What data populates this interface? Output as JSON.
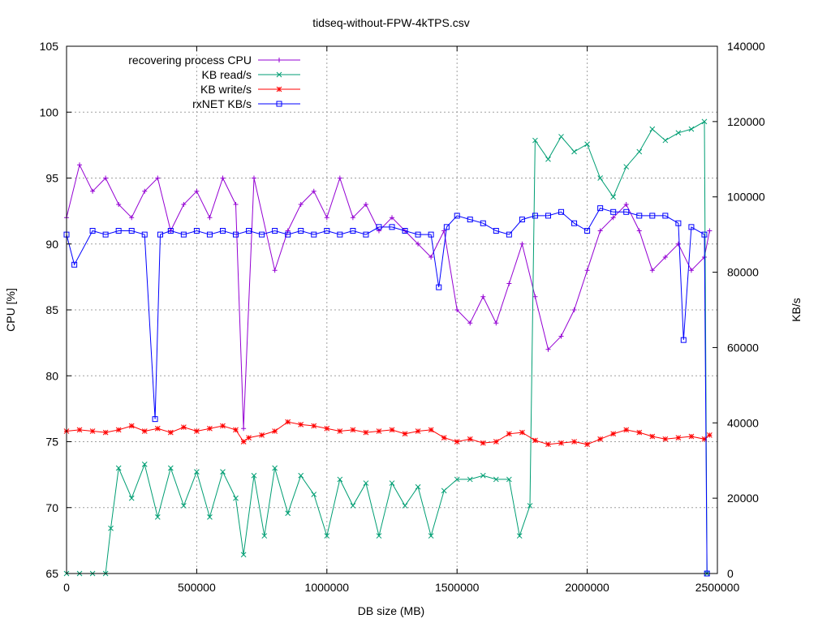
{
  "chart_data": {
    "type": "line",
    "title": "tidseq-without-FPW-4kTPS.csv",
    "xlabel": "DB size (MB)",
    "ylabel": "CPU [%]",
    "y2label": "KB/s",
    "xlim": [
      0,
      2500000
    ],
    "ylim": [
      65,
      105
    ],
    "y2lim": [
      0,
      140000
    ],
    "xticks": [
      0,
      500000,
      1000000,
      1500000,
      2000000,
      2500000
    ],
    "yticks": [
      65,
      70,
      75,
      80,
      85,
      90,
      95,
      100,
      105
    ],
    "y2ticks": [
      0,
      20000,
      40000,
      60000,
      80000,
      100000,
      120000,
      140000
    ],
    "xtick_labels": [
      "0",
      "500000",
      "1000000",
      "1500000",
      "2000000",
      "2500000"
    ],
    "ytick_labels": [
      "65",
      "70",
      "75",
      "80",
      "85",
      "90",
      "95",
      "100",
      "105"
    ],
    "y2tick_labels": [
      "0",
      "20000",
      "40000",
      "60000",
      "80000",
      "100000",
      "120000",
      "140000"
    ],
    "grid": true,
    "legend_position": "top-left",
    "series": [
      {
        "name": "recovering process CPU",
        "axis": "y1",
        "color": "#9400d3",
        "marker": "plus",
        "x": [
          0,
          50000,
          100000,
          150000,
          200000,
          250000,
          300000,
          350000,
          400000,
          450000,
          500000,
          550000,
          600000,
          650000,
          680000,
          720000,
          800000,
          850000,
          900000,
          950000,
          1000000,
          1050000,
          1100000,
          1150000,
          1200000,
          1250000,
          1300000,
          1350000,
          1400000,
          1450000,
          1500000,
          1550000,
          1600000,
          1650000,
          1700000,
          1750000,
          1800000,
          1850000,
          1900000,
          1950000,
          2000000,
          2050000,
          2100000,
          2150000,
          2200000,
          2250000,
          2300000,
          2350000,
          2400000,
          2450000,
          2470000
        ],
        "values": [
          92,
          96,
          94,
          95,
          93,
          92,
          94,
          95,
          91,
          93,
          94,
          92,
          95,
          93,
          76,
          95,
          88,
          91,
          93,
          94,
          92,
          95,
          92,
          93,
          91,
          92,
          91,
          90,
          89,
          91,
          85,
          84,
          86,
          84,
          87,
          90,
          86,
          82,
          83,
          85,
          88,
          91,
          92,
          93,
          91,
          88,
          89,
          90,
          88,
          89,
          91
        ]
      },
      {
        "name": "KB read/s",
        "axis": "y2",
        "color": "#009e73",
        "marker": "x",
        "x": [
          0,
          50000,
          100000,
          150000,
          170000,
          200000,
          250000,
          300000,
          350000,
          400000,
          450000,
          500000,
          550000,
          600000,
          650000,
          680000,
          720000,
          760000,
          800000,
          850000,
          900000,
          950000,
          1000000,
          1050000,
          1100000,
          1150000,
          1200000,
          1250000,
          1300000,
          1350000,
          1400000,
          1450000,
          1500000,
          1550000,
          1600000,
          1650000,
          1700000,
          1740000,
          1780000,
          1800000,
          1850000,
          1900000,
          1950000,
          2000000,
          2050000,
          2100000,
          2150000,
          2200000,
          2250000,
          2300000,
          2350000,
          2400000,
          2450000,
          2460000
        ],
        "values": [
          0,
          0,
          0,
          0,
          12000,
          28000,
          20000,
          29000,
          15000,
          28000,
          18000,
          27000,
          15000,
          27000,
          20000,
          5000,
          26000,
          10000,
          28000,
          16000,
          26000,
          21000,
          10000,
          25000,
          18000,
          24000,
          10000,
          24000,
          18000,
          23000,
          10000,
          22000,
          25000,
          25000,
          26000,
          25000,
          25000,
          10000,
          18000,
          115000,
          110000,
          116000,
          112000,
          114000,
          105000,
          100000,
          108000,
          112000,
          118000,
          115000,
          117000,
          118000,
          120000,
          0
        ]
      },
      {
        "name": "KB write/s",
        "axis": "y1",
        "color": "#ff0000",
        "marker": "star",
        "x": [
          0,
          50000,
          100000,
          150000,
          200000,
          250000,
          300000,
          350000,
          400000,
          450000,
          500000,
          550000,
          600000,
          650000,
          680000,
          700000,
          750000,
          800000,
          850000,
          900000,
          950000,
          1000000,
          1050000,
          1100000,
          1150000,
          1200000,
          1250000,
          1300000,
          1350000,
          1400000,
          1450000,
          1500000,
          1550000,
          1600000,
          1650000,
          1700000,
          1750000,
          1800000,
          1850000,
          1900000,
          1950000,
          2000000,
          2050000,
          2100000,
          2150000,
          2200000,
          2250000,
          2300000,
          2350000,
          2400000,
          2450000,
          2470000
        ],
        "values": [
          75.8,
          75.9,
          75.8,
          75.7,
          75.9,
          76.2,
          75.8,
          76.0,
          75.7,
          76.1,
          75.8,
          76.0,
          76.2,
          75.9,
          75.0,
          75.3,
          75.5,
          75.8,
          76.5,
          76.3,
          76.2,
          76.0,
          75.8,
          75.9,
          75.7,
          75.8,
          75.9,
          75.6,
          75.8,
          75.9,
          75.3,
          75.0,
          75.2,
          74.9,
          75.0,
          75.6,
          75.7,
          75.1,
          74.8,
          74.9,
          75.0,
          74.8,
          75.2,
          75.6,
          75.9,
          75.7,
          75.4,
          75.2,
          75.3,
          75.4,
          75.2,
          75.5
        ]
      },
      {
        "name": "rxNET KB/s",
        "axis": "y2",
        "color": "#0000ff",
        "marker": "square",
        "x": [
          0,
          30000,
          100000,
          150000,
          200000,
          250000,
          300000,
          340000,
          360000,
          400000,
          450000,
          500000,
          550000,
          600000,
          650000,
          700000,
          750000,
          800000,
          850000,
          900000,
          950000,
          1000000,
          1050000,
          1100000,
          1150000,
          1200000,
          1250000,
          1300000,
          1350000,
          1400000,
          1430000,
          1460000,
          1500000,
          1550000,
          1600000,
          1650000,
          1700000,
          1750000,
          1800000,
          1850000,
          1900000,
          1950000,
          2000000,
          2050000,
          2100000,
          2150000,
          2200000,
          2250000,
          2300000,
          2350000,
          2370000,
          2400000,
          2450000,
          2460000
        ],
        "values": [
          90000,
          82000,
          91000,
          90000,
          91000,
          91000,
          90000,
          41000,
          90000,
          91000,
          90000,
          91000,
          90000,
          91000,
          90000,
          91000,
          90000,
          91000,
          90000,
          91000,
          90000,
          91000,
          90000,
          91000,
          90000,
          92000,
          92000,
          91000,
          90000,
          90000,
          76000,
          92000,
          95000,
          94000,
          93000,
          91000,
          90000,
          94000,
          95000,
          95000,
          96000,
          93000,
          91000,
          97000,
          96000,
          96000,
          95000,
          95000,
          95000,
          93000,
          62000,
          92000,
          90000,
          0
        ]
      }
    ]
  }
}
